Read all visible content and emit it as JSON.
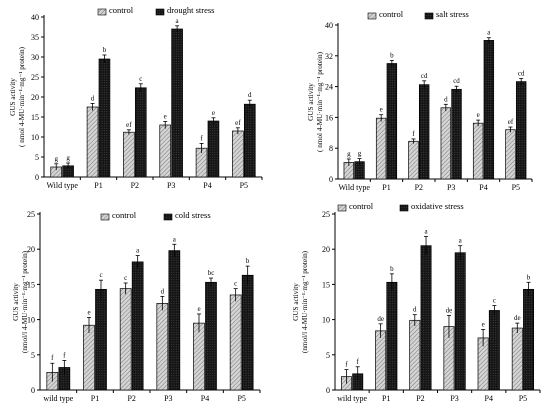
{
  "colors": {
    "control": "#cfcfcf",
    "stress": "#1c1c1c",
    "axis": "#000000"
  },
  "chart_data": [
    {
      "type": "bar",
      "ylabel": "GUS activity\n( nmol 4-MU·min⁻¹·mg⁻¹ protein)",
      "categories": [
        "Wild type",
        "P1",
        "P2",
        "P3",
        "P4",
        "P5"
      ],
      "ylim": [
        0,
        40
      ],
      "yticks": [
        0,
        5,
        10,
        15,
        20,
        25,
        30,
        35,
        40
      ],
      "legend_position": "top",
      "series": [
        {
          "name": "control",
          "values": [
            2.5,
            17.5,
            11.2,
            13.0,
            7.2,
            11.5
          ],
          "errors": [
            0.8,
            0.9,
            0.6,
            0.9,
            1.2,
            0.8
          ],
          "letters": [
            "g",
            "d",
            "ef",
            "e",
            "f",
            "ef"
          ]
        },
        {
          "name": "drought stress",
          "values": [
            2.8,
            29.5,
            22.3,
            37.0,
            14.0,
            18.2
          ],
          "errors": [
            0.7,
            1.0,
            1.0,
            0.8,
            0.8,
            1.0
          ],
          "letters": [
            "g",
            "b",
            "c",
            "a",
            "e",
            "d"
          ]
        }
      ]
    },
    {
      "type": "bar",
      "ylabel": "GUS activity\n( nmol 4-MU·min⁻¹·mg⁻¹ protein)",
      "categories": [
        "Wild type",
        "P1",
        "P2",
        "P3",
        "P4",
        "P5"
      ],
      "ylim": [
        0,
        40
      ],
      "yticks": [
        0,
        8,
        16,
        24,
        32,
        40
      ],
      "legend_position": "top",
      "series": [
        {
          "name": "control",
          "values": [
            4.3,
            15.8,
            9.8,
            18.5,
            14.5,
            12.8
          ],
          "errors": [
            0.9,
            0.9,
            0.6,
            0.9,
            0.8,
            0.7
          ],
          "letters": [
            "g",
            "e",
            "f",
            "d",
            "e",
            "ef"
          ]
        },
        {
          "name": "salt stress",
          "values": [
            4.5,
            30.0,
            24.5,
            23.3,
            36.0,
            25.3
          ],
          "errors": [
            0.8,
            0.8,
            1.0,
            0.8,
            0.7,
            0.8
          ],
          "letters": [
            "g",
            "b",
            "cd",
            "cd",
            "a",
            "cd"
          ]
        }
      ]
    },
    {
      "type": "bar",
      "ylabel": "GUS activity\n(nmol/l 4-MU·min⁻¹·mg⁻¹ protein)",
      "categories": [
        "wild type",
        "P1",
        "P2",
        "P3",
        "P4",
        "P5"
      ],
      "ylim": [
        0,
        25
      ],
      "yticks": [
        0,
        5,
        10,
        15,
        20,
        25
      ],
      "legend_position": "top",
      "series": [
        {
          "name": "control",
          "values": [
            2.5,
            9.2,
            14.4,
            12.3,
            9.5,
            13.5
          ],
          "errors": [
            1.3,
            1.1,
            0.8,
            1.0,
            1.3,
            0.9
          ],
          "letters": [
            "f",
            "e",
            "c",
            "d",
            "e",
            "c"
          ]
        },
        {
          "name": "cold stress",
          "values": [
            3.2,
            14.3,
            18.2,
            19.8,
            15.3,
            16.3
          ],
          "errors": [
            1.0,
            1.3,
            0.9,
            0.9,
            0.6,
            1.3
          ],
          "letters": [
            "f",
            "c",
            "a",
            "a",
            "bc",
            "b"
          ]
        }
      ]
    },
    {
      "type": "bar",
      "ylabel": "GUS activity\n(nmol/l 4-MU·min⁻¹·mg⁻¹ protein)",
      "categories": [
        "wild type",
        "P1",
        "P2",
        "P3",
        "P4",
        "P5"
      ],
      "ylim": [
        0,
        25
      ],
      "yticks": [
        0,
        5,
        10,
        15,
        20,
        25
      ],
      "legend_position": "top",
      "series": [
        {
          "name": "control",
          "values": [
            1.9,
            8.4,
            9.9,
            9.0,
            7.4,
            8.8
          ],
          "errors": [
            1.0,
            1.0,
            0.8,
            1.6,
            1.2,
            0.7
          ],
          "letters": [
            "f",
            "de",
            "d",
            "de",
            "e",
            "de"
          ]
        },
        {
          "name": "oxidative stress",
          "values": [
            2.3,
            15.3,
            20.5,
            19.5,
            11.3,
            14.3
          ],
          "errors": [
            1.0,
            1.2,
            1.3,
            1.0,
            0.7,
            1.0
          ],
          "letters": [
            "f",
            "b",
            "a",
            "a",
            "c",
            "b"
          ]
        }
      ]
    }
  ]
}
